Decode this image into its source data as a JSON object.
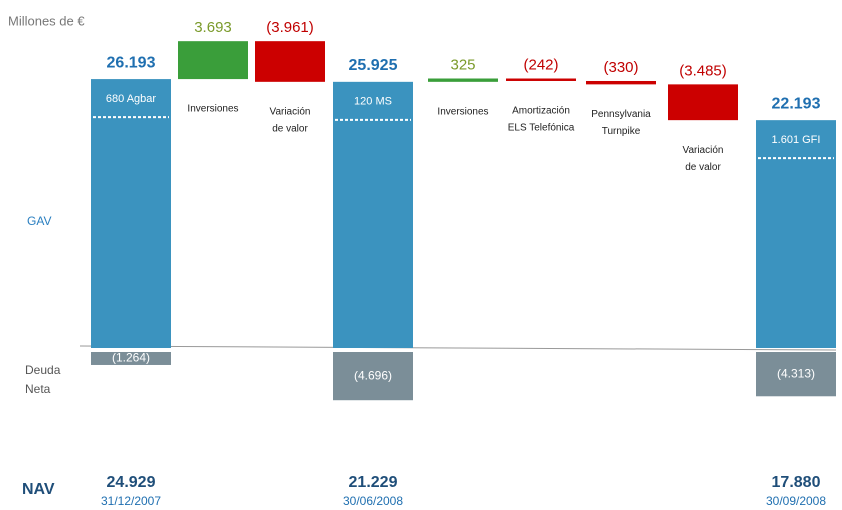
{
  "chart_data": {
    "type": "waterfall",
    "unit_label": "Millones de €",
    "row_labels": {
      "gav": "GAV",
      "debt": [
        "Deuda",
        "Neta"
      ],
      "nav": "NAV"
    },
    "ylim": [
      0,
      30000
    ],
    "colors": {
      "total": "#3b93bf",
      "up": "#3a9e3a",
      "down": "#cc0000",
      "debt": "#7b8e98",
      "up_text": "#7a9a2a",
      "down_text": "#c00000"
    },
    "steps": [
      {
        "kind": "total",
        "value": 26193,
        "label": "26.193",
        "note": "680 Agbar",
        "debt": -1264,
        "debt_label": "(1.264)",
        "nav": 24929,
        "nav_label": "24.929",
        "date": "31/12/2007"
      },
      {
        "kind": "change",
        "value": 3693,
        "label": "3.693",
        "name": [
          "Inversiones"
        ]
      },
      {
        "kind": "change",
        "value": -3961,
        "label": "(3.961)",
        "name": [
          "Variación",
          "de valor"
        ]
      },
      {
        "kind": "total",
        "value": 25925,
        "label": "25.925",
        "note": "120  MS",
        "debt": -4696,
        "debt_label": "(4.696)",
        "nav": 21229,
        "nav_label": "21.229",
        "date": "30/06/2008"
      },
      {
        "kind": "change",
        "value": 325,
        "label": "325",
        "name": [
          "Inversiones"
        ]
      },
      {
        "kind": "change",
        "value": -242,
        "label": "(242)",
        "name": [
          "Amortización",
          "ELS Telefónica"
        ]
      },
      {
        "kind": "change",
        "value": -330,
        "label": "(330)",
        "name": [
          "Pennsylvania",
          "Turnpike"
        ]
      },
      {
        "kind": "change",
        "value": -3485,
        "label": "(3.485)",
        "name": [
          "Variación",
          "de valor"
        ]
      },
      {
        "kind": "total",
        "value": 22193,
        "label": "22.193",
        "note": "1.601 GFI",
        "debt": -4313,
        "debt_label": "(4.313)",
        "nav": 17880,
        "nav_label": "17.880",
        "date": "30/09/2008"
      }
    ]
  }
}
